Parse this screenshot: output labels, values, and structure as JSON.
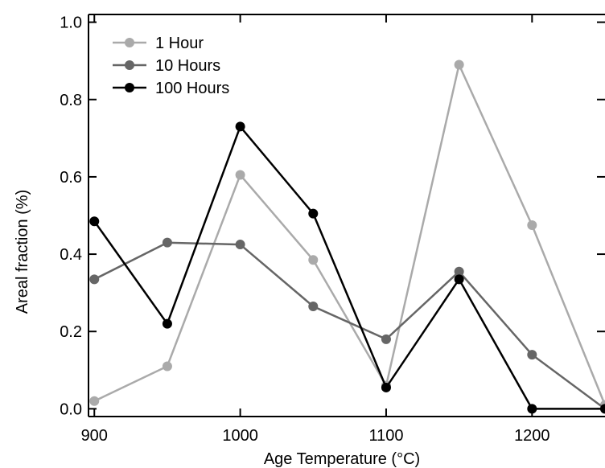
{
  "chart_data": {
    "type": "line",
    "title": "",
    "xlabel": "Age Temperature (°C)",
    "ylabel": "Areal fraction (%)",
    "x": [
      900,
      950,
      1000,
      1050,
      1100,
      1150,
      1200,
      1250
    ],
    "xlim": [
      896,
      1250
    ],
    "ylim": [
      -0.02,
      1.02
    ],
    "x_ticks": [
      900,
      1000,
      1100,
      1200
    ],
    "x_tick_labels": [
      "900",
      "1000",
      "1100",
      "1200"
    ],
    "y_ticks": [
      0.0,
      0.2,
      0.4,
      0.6,
      0.8,
      1.0
    ],
    "y_tick_labels": [
      "0.0",
      "0.2",
      "0.4",
      "0.6",
      "0.8",
      "1.0"
    ],
    "grid": false,
    "legend_position": "top-left",
    "series": [
      {
        "name": "1 Hour",
        "color": "#aaaaaa",
        "values": [
          0.02,
          0.11,
          0.605,
          0.385,
          0.06,
          0.89,
          0.475,
          0.01
        ]
      },
      {
        "name": "10 Hours",
        "color": "#666666",
        "values": [
          0.335,
          0.43,
          0.425,
          0.265,
          0.18,
          0.355,
          0.14,
          0.0
        ]
      },
      {
        "name": "100 Hours",
        "color": "#000000",
        "values": [
          0.485,
          0.22,
          0.73,
          0.505,
          0.055,
          0.335,
          0.0,
          0.0
        ]
      }
    ]
  }
}
